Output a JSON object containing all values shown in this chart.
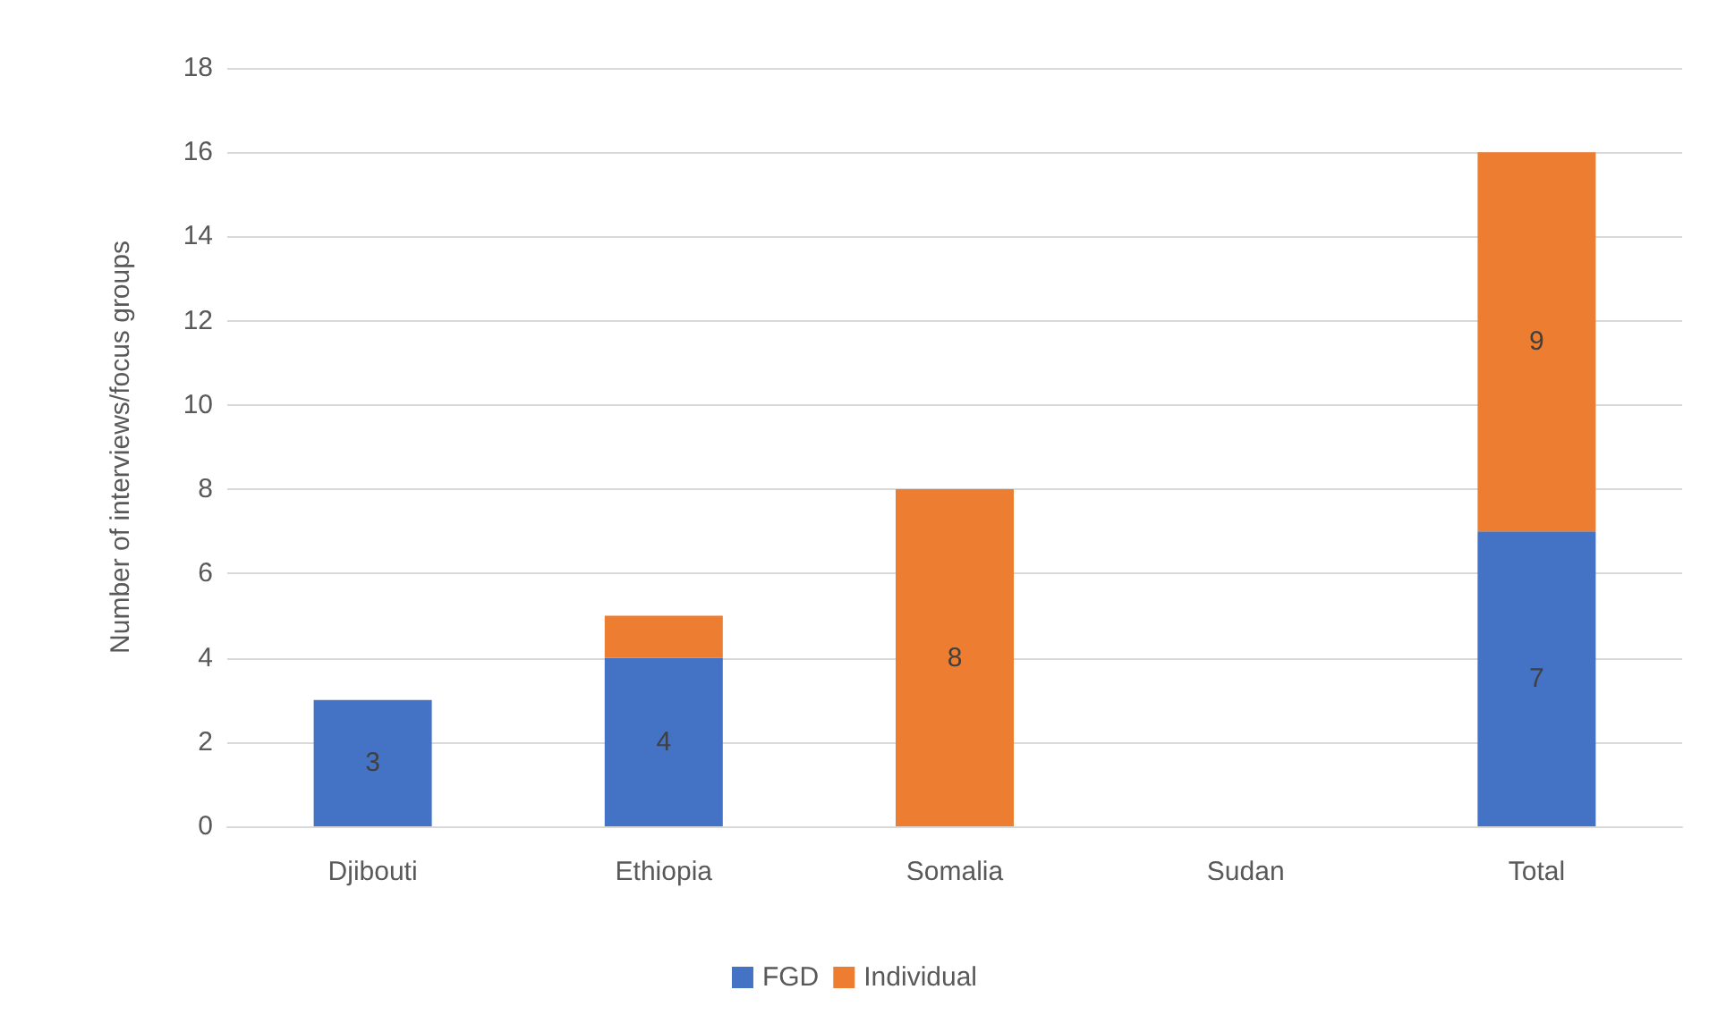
{
  "chart_data": {
    "type": "bar",
    "ylabel": "Number of interviews/focus groups",
    "categories": [
      "Djibouti",
      "Ethiopia",
      "Somalia",
      "Sudan",
      "Total"
    ],
    "series": [
      {
        "name": "FGD",
        "color": "#4472c4",
        "values": [
          3,
          4,
          0,
          0,
          7
        ],
        "value_labels": [
          "3",
          "4",
          null,
          null,
          "7"
        ]
      },
      {
        "name": "Individual",
        "color": "#ed7d31",
        "values": [
          0,
          1,
          8,
          0,
          9
        ],
        "value_labels": [
          null,
          null,
          "8",
          null,
          "9"
        ]
      }
    ],
    "stacked": true,
    "ylim": [
      0,
      18
    ],
    "yticks": [
      0,
      2,
      4,
      6,
      8,
      10,
      12,
      14,
      16,
      18
    ],
    "grid": "y",
    "legend": "bottom"
  }
}
